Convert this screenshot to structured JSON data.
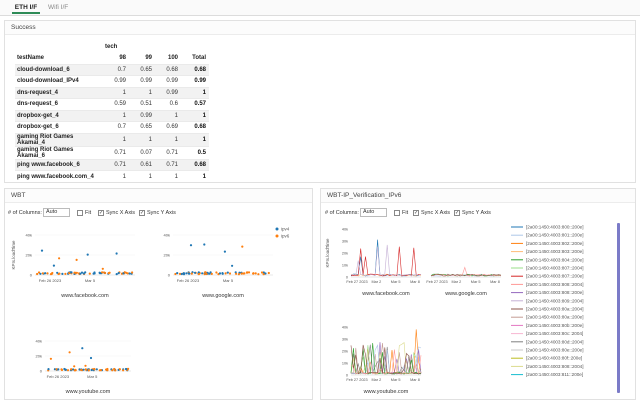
{
  "tabs": [
    "ETH I/F",
    "Wifi I/F"
  ],
  "success_panel": {
    "title": "Success",
    "group_header": "tech",
    "columns": [
      "testName",
      "98",
      "99",
      "100",
      "Total"
    ],
    "rows": [
      [
        "cloud-download_6",
        "0.7",
        "0.65",
        "0.68",
        "0.68"
      ],
      [
        "cloud-download_IPv4",
        "0.99",
        "0.99",
        "0.99",
        "0.99"
      ],
      [
        "dns-request_4",
        "1",
        "1",
        "0.99",
        "1"
      ],
      [
        "dns-request_6",
        "0.59",
        "0.51",
        "0.6",
        "0.57"
      ],
      [
        "dropbox-get_4",
        "1",
        "0.99",
        "1",
        "1"
      ],
      [
        "dropbox-get_6",
        "0.7",
        "0.65",
        "0.69",
        "0.68"
      ],
      [
        "gaming Riot Games Akamai_4",
        "1",
        "1",
        "1",
        "1"
      ],
      [
        "gaming Riot Games Akamai_6",
        "0.71",
        "0.07",
        "0.71",
        "0.5"
      ],
      [
        "ping www.facebook_6",
        "0.71",
        "0.61",
        "0.71",
        "0.68"
      ],
      [
        "ping www.facebook.com_4",
        "1",
        "1",
        "1",
        "1"
      ]
    ]
  },
  "wbt_panel": {
    "title": "WBT",
    "columns_label": "# of Columns:",
    "columns_value": "Auto",
    "fit_label": "Fit",
    "sync_x_label": "Sync X Axis",
    "sync_y_label": "Sync Y Axis",
    "ylabel": "KPIs.loadTime",
    "legend": [
      "ipv4",
      "ipv6"
    ],
    "colors": {
      "ipv4": "#1f77b4",
      "ipv6": "#ff7f0e"
    },
    "ticks_y": [
      "40k",
      "20k",
      "0"
    ],
    "ticks_x": [
      "Feb 26\n2023",
      "Mar 5"
    ],
    "charts": [
      "www.facebook.com",
      "www.google.com",
      "www.youtube.com"
    ]
  },
  "ipv6_panel": {
    "title": "WBT-IP_Verification_IPv6",
    "columns_label": "# of Columns:",
    "columns_value": "Auto",
    "fit_label": "Fit",
    "sync_x_label": "Sync X Axis",
    "sync_y_label": "Sync Y Axis",
    "ylabel": "KPIs.loadTime",
    "ticks_y_small": [
      "40k",
      "30k",
      "20k",
      "10k",
      "0"
    ],
    "ticks_x": [
      "Feb 27\n2023",
      "Mar 2",
      "Mar 5",
      "Mar 8"
    ],
    "charts": [
      "www.facebook.com",
      "www.google.com",
      "www.youtube.com"
    ],
    "legend": [
      "[2a00:1450:4003:800::200e]",
      "[2a00:1450:4003:801::200e]",
      "[2a00:1450:4003:802::200e]",
      "[2a00:1450:4003:803::200e]",
      "[2a00:1450:4003:804::200e]",
      "[2a00:1450:4003:807::2004]",
      "[2a00:1450:4003:807::200e]",
      "[2a00:1450:4003:808::2004]",
      "[2a00:1450:4003:808::200e]",
      "[2a00:1450:4003:809::2004]",
      "[2a00:1450:4003:80a::2004]",
      "[2a00:1450:4003:80a::200e]",
      "[2a00:1450:4003:80b::200e]",
      "[2a00:1450:4003:80c::2004]",
      "[2a00:1450:4003:80d::2004]",
      "[2a00:1450:4003:80e::200e]",
      "[2a00:1450:4003:80f::200e]",
      "[2a00:1450:4003:808::2004]",
      "[2a00:1450:4003:811::200e]"
    ],
    "legend_colors": [
      "#1f77b4",
      "#aec7e8",
      "#ff7f0e",
      "#ffbb78",
      "#2ca02c",
      "#98df8a",
      "#d62728",
      "#ff9896",
      "#9467bd",
      "#c5b0d5",
      "#8c564b",
      "#c49c94",
      "#e377c2",
      "#f7b6d2",
      "#7f7f7f",
      "#c7c7c7",
      "#bcbd22",
      "#dbdb8d",
      "#17becf"
    ]
  }
}
